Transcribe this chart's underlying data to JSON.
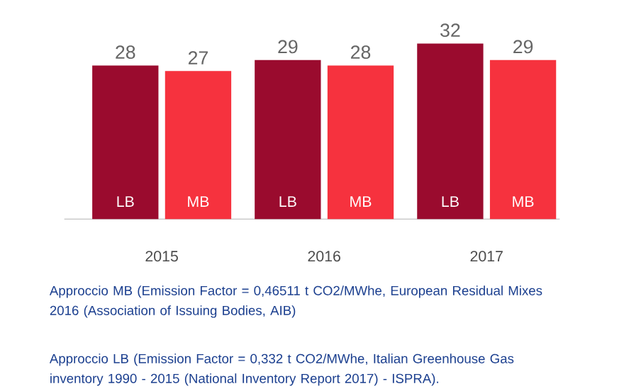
{
  "chart_data": {
    "type": "bar",
    "categories": [
      "2015",
      "2016",
      "2017"
    ],
    "series": [
      {
        "name": "LB",
        "color": "#9a0b2e",
        "values": [
          28,
          29,
          32
        ]
      },
      {
        "name": "MB",
        "color": "#f6323e",
        "values": [
          27,
          28,
          29
        ]
      }
    ],
    "data_labels": true,
    "legend": false,
    "annotations": [
      "Approccio MB (Emission Factor = 0,46511 t CO2/MWhe, European Residual Mixes 2016 (Association of Issuing Bodies, AIB)",
      "Approccio LB (Emission Factor = 0,332 t CO2/MWhe, Italian Greenhouse Gas inventory 1990 - 2015 (National Inventory Report 2017) - ISPRA)."
    ]
  }
}
